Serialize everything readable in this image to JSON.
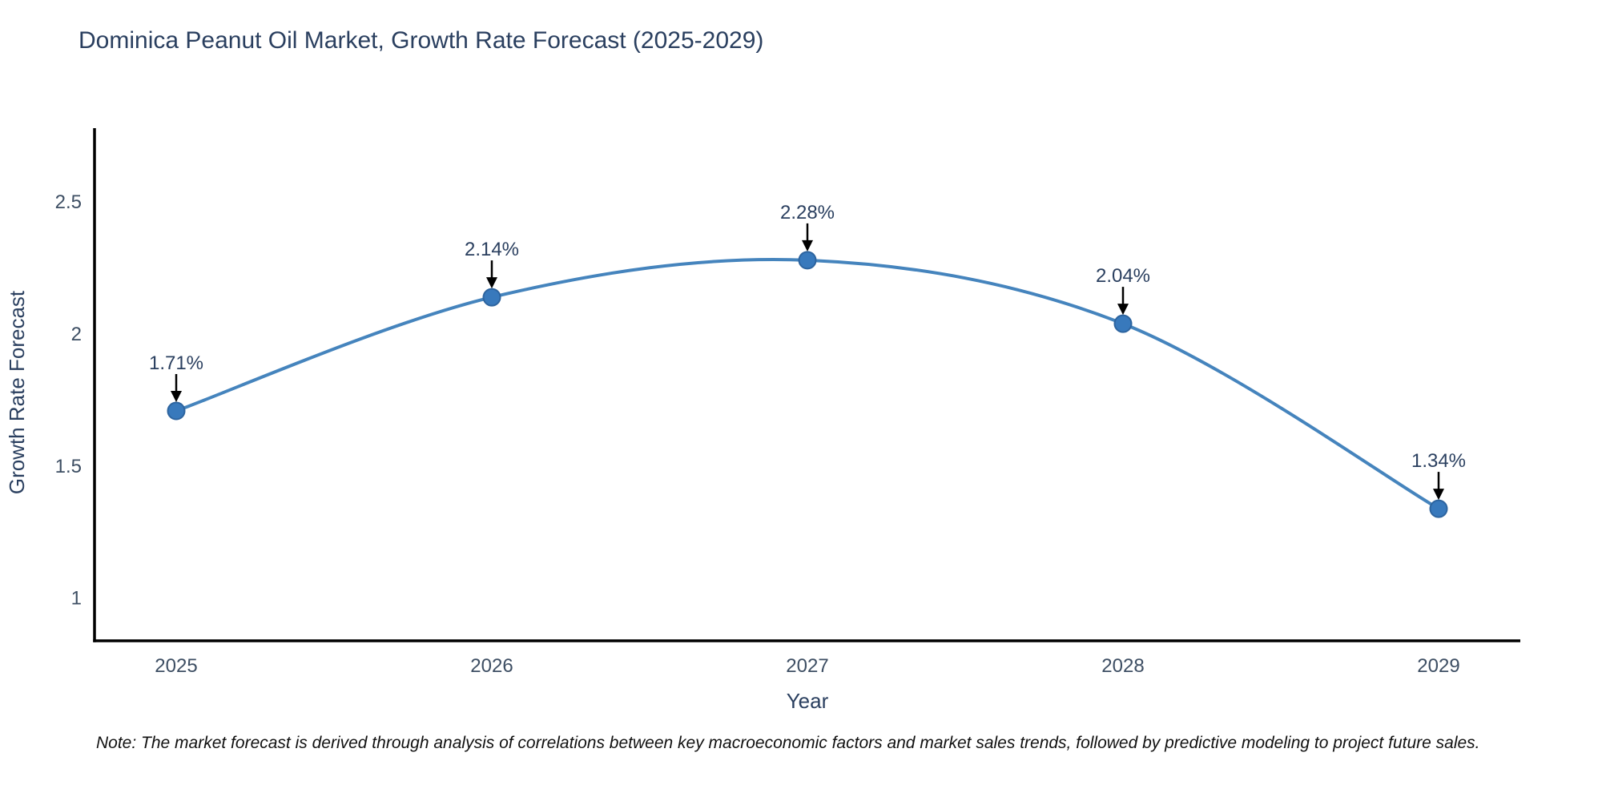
{
  "title": "Dominica Peanut Oil Market, Growth Rate Forecast (2025-2029)",
  "note": "Note: The market forecast is derived through analysis of correlations between key macroeconomic factors and market sales trends, followed by predictive modeling to project future sales.",
  "chart_data": {
    "type": "line",
    "title": "Dominica Peanut Oil Market, Growth Rate Forecast (2025-2029)",
    "categories": [
      "2025",
      "2026",
      "2027",
      "2028",
      "2029"
    ],
    "values": [
      1.71,
      2.14,
      2.28,
      2.04,
      1.34
    ],
    "point_labels": [
      "1.71%",
      "2.14%",
      "2.28%",
      "2.04%",
      "1.34%"
    ],
    "xlabel": "Year",
    "ylabel": "Growth Rate Forecast",
    "yticks": [
      1,
      1.5,
      2,
      2.5
    ],
    "ylim": [
      0.84,
      2.78
    ],
    "line_shape": "spline",
    "grid": false,
    "legend": "none",
    "annotations": "black down-arrows pointing at each data point with percent label above",
    "colors": {
      "line": "#4584bd",
      "marker": "#3879bc",
      "marker_edge": "#2d649f",
      "axis": "#000000",
      "arrow": "#000000",
      "text": "#2a3f5f",
      "tick": "#3d4e63",
      "annotation": "#2a3f5f",
      "note": "#111111",
      "background": "#ffffff"
    }
  }
}
